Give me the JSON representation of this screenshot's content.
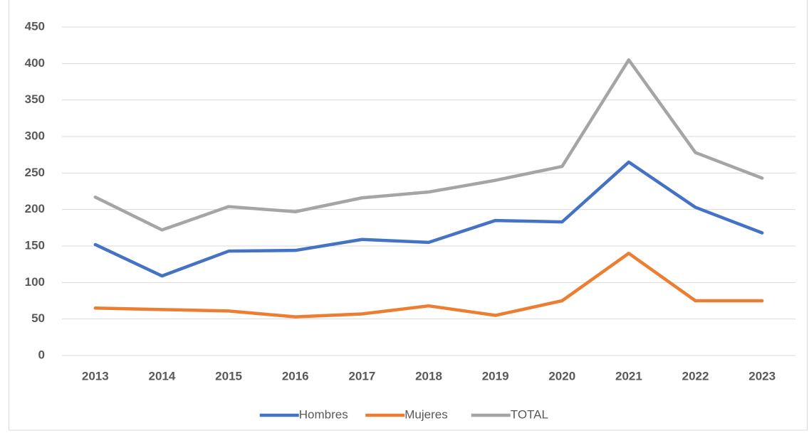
{
  "chart_data": {
    "type": "line",
    "categories": [
      "2013",
      "2014",
      "2015",
      "2016",
      "2017",
      "2018",
      "2019",
      "2020",
      "2021",
      "2022",
      "2023"
    ],
    "series": [
      {
        "name": "Hombres",
        "color": "#4472c4",
        "values": [
          152,
          109,
          143,
          144,
          159,
          155,
          185,
          183,
          265,
          203,
          168
        ]
      },
      {
        "name": "Mujeres",
        "color": "#ed7d31",
        "values": [
          65,
          63,
          61,
          53,
          57,
          68,
          55,
          75,
          140,
          75,
          75
        ]
      },
      {
        "name": "TOTAL",
        "color": "#a5a5a5",
        "values": [
          217,
          172,
          204,
          197,
          216,
          224,
          240,
          259,
          405,
          278,
          243
        ]
      }
    ],
    "ylim": [
      0,
      450
    ],
    "yticks": [
      0,
      50,
      100,
      150,
      200,
      250,
      300,
      350,
      400,
      450
    ],
    "grid": true,
    "legend": "bottom"
  }
}
